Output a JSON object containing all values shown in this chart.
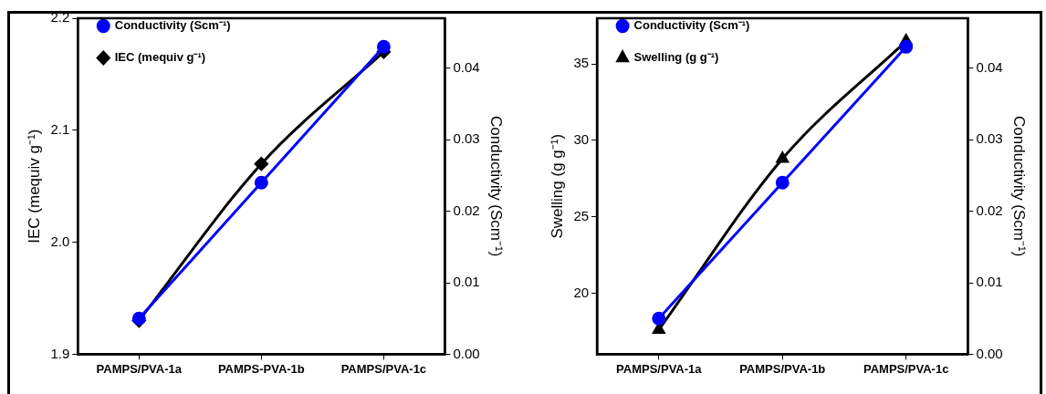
{
  "chart_data": [
    {
      "type": "line",
      "categories": [
        "PAMPS/PVA-1a",
        "PAMPS-PVA-1b",
        "PAMPS/PVA-1c"
      ],
      "ylabel": "IEC (mequiv g⁻¹)",
      "y2label": "Conductivity (Scm⁻¹)",
      "ylim": [
        1.9,
        2.2
      ],
      "yticks": [
        {
          "value": 1.9,
          "label": "1.9"
        },
        {
          "value": 2.0,
          "label": "2.0"
        },
        {
          "value": 2.1,
          "label": "2.1"
        },
        {
          "value": 2.2,
          "label": "2.2"
        }
      ],
      "y2lim": [
        0,
        0.047
      ],
      "y2ticks": [
        {
          "value": 0,
          "label": "0.00"
        },
        {
          "value": 0.01,
          "label": "0.01"
        },
        {
          "value": 0.02,
          "label": "0.02"
        },
        {
          "value": 0.03,
          "label": "0.03"
        },
        {
          "value": 0.04,
          "label": "0.04"
        }
      ],
      "grid": false,
      "legend": "top left",
      "series": [
        {
          "name": "IEC (mequiv g⁻¹)",
          "color": "#000000",
          "marker": "diamond",
          "values": [
            1.93,
            2.07,
            2.17
          ]
        },
        {
          "name": "Conductivity (Scm⁻¹)",
          "color": "#0000ff",
          "marker": "circle",
          "axis": "y2",
          "values": [
            0.005,
            0.024,
            0.043
          ]
        }
      ]
    },
    {
      "type": "line",
      "categories": [
        "PAMPS/PVA-1a",
        "PAMPS/PVA-1b",
        "PAMPS/PVA-1c"
      ],
      "ylabel": "Swelling (g g⁻¹)",
      "y2label": "Conductivity (Scm⁻¹)",
      "ylim": [
        16,
        38
      ],
      "yticks": [
        20,
        25,
        30,
        35
      ],
      "y2lim": [
        0,
        0.047
      ],
      "y2ticks": [
        {
          "value": 0,
          "label": "0.00"
        },
        {
          "value": 0.01,
          "label": "0.01"
        },
        {
          "value": 0.02,
          "label": "0.02"
        },
        {
          "value": 0.03,
          "label": "0.03"
        },
        {
          "value": 0.04,
          "label": "0.04"
        }
      ],
      "grid": false,
      "legend": "top left",
      "series": [
        {
          "name": "Swelling (g g⁻¹)",
          "color": "#000000",
          "marker": "triangle",
          "values": [
            17.6,
            28.8,
            36.5
          ]
        },
        {
          "name": "Conductivity (Scm⁻¹)",
          "color": "#0000ff",
          "marker": "circle",
          "axis": "y2",
          "values": [
            0.005,
            0.024,
            0.043
          ]
        }
      ]
    }
  ]
}
